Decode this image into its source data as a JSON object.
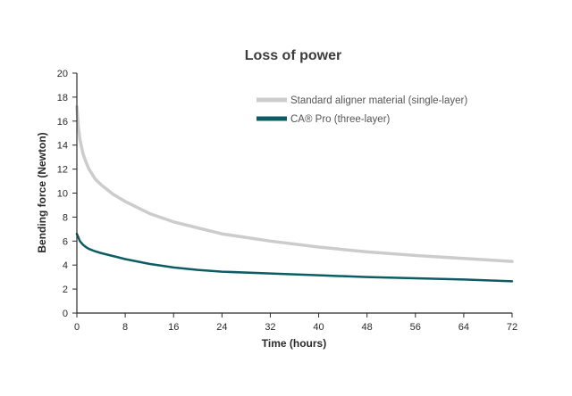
{
  "chart_data": {
    "type": "line",
    "title": "Loss of power",
    "xlabel": "Time (hours)",
    "ylabel": "Bending force (Newton)",
    "xlim": [
      0,
      72
    ],
    "ylim": [
      0,
      20
    ],
    "xticks": [
      0,
      8,
      16,
      24,
      32,
      40,
      48,
      56,
      64,
      72
    ],
    "yticks": [
      0,
      2,
      4,
      6,
      8,
      10,
      12,
      14,
      16,
      18,
      20
    ],
    "grid": false,
    "legend_position": "top-right",
    "series": [
      {
        "name": "Standard aligner material (single-layer)",
        "color": "#cccccc",
        "x": [
          0,
          0.25,
          0.5,
          1,
          1.5,
          2,
          3,
          4,
          6,
          8,
          12,
          16,
          20,
          24,
          32,
          40,
          48,
          56,
          64,
          72
        ],
        "y": [
          17.2,
          15.5,
          14.5,
          13.3,
          12.6,
          12.0,
          11.2,
          10.7,
          9.9,
          9.3,
          8.3,
          7.6,
          7.1,
          6.6,
          6.0,
          5.5,
          5.1,
          4.8,
          4.55,
          4.3
        ]
      },
      {
        "name": "CA® Pro (three-layer)",
        "color": "#0c5d63",
        "x": [
          0,
          0.25,
          0.5,
          1,
          1.5,
          2,
          3,
          4,
          6,
          8,
          12,
          16,
          20,
          24,
          32,
          40,
          48,
          56,
          64,
          72
        ],
        "y": [
          6.6,
          6.3,
          6.0,
          5.7,
          5.5,
          5.35,
          5.15,
          5.0,
          4.75,
          4.5,
          4.1,
          3.8,
          3.6,
          3.45,
          3.3,
          3.15,
          3.0,
          2.9,
          2.8,
          2.65
        ]
      }
    ]
  }
}
